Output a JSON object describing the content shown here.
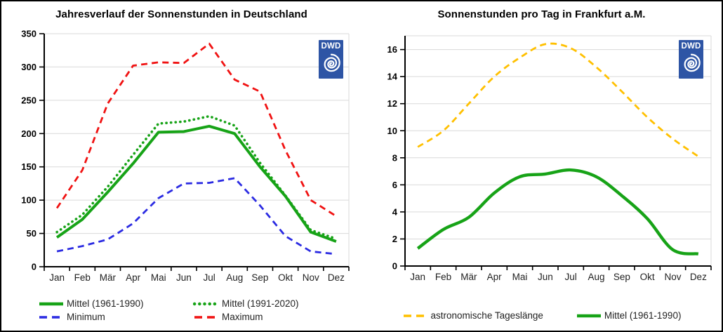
{
  "figure": {
    "background": "#ffffff",
    "border_color": "#000000"
  },
  "colors": {
    "gridline": "#d9d9d9",
    "axis": "#000000",
    "y_tick_label": "#000000",
    "x_tick_label": "#1f1f1f",
    "legend_text": "#1f1f1f",
    "logo_background": "#2e55a5",
    "logo_foreground": "#ffffff"
  },
  "chart_data": [
    {
      "type": "line",
      "title": "Jahresverlauf der Sonnenstunden in Deutschland",
      "logo_text": "DWD",
      "categories": [
        "Jan",
        "Feb",
        "Mär",
        "Apr",
        "Mai",
        "Jun",
        "Jul",
        "Aug",
        "Sep",
        "Okt",
        "Nov",
        "Dez"
      ],
      "xlabel": "",
      "ylabel": "",
      "ylim": [
        0,
        350
      ],
      "y_tick_step": 50,
      "y_tick_labels": [
        "0",
        "50",
        "100",
        "150",
        "200",
        "250",
        "300",
        "350"
      ],
      "grid": true,
      "legend_position": "bottom",
      "legend_rows": [
        [
          0,
          1
        ],
        [
          2,
          3
        ]
      ],
      "series": [
        {
          "name": "Mittel (1961-1990)",
          "color": "#17a317",
          "style": "solid",
          "width": 4,
          "smooth": false,
          "values": [
            44,
            71,
            112,
            155,
            202,
            203,
            211,
            200,
            150,
            106,
            52,
            38
          ]
        },
        {
          "name": "Mittel (1991-2020)",
          "color": "#17a317",
          "style": "dotted",
          "width": 3.6,
          "smooth": false,
          "values": [
            52,
            78,
            120,
            168,
            215,
            218,
            226,
            212,
            156,
            107,
            55,
            42
          ]
        },
        {
          "name": "Minimum",
          "color": "#2b2be2",
          "style": "dashed",
          "width": 2.8,
          "smooth": false,
          "values": [
            23,
            31,
            41,
            65,
            103,
            125,
            126,
            133,
            92,
            46,
            23,
            19
          ]
        },
        {
          "name": "Maximum",
          "color": "#f01212",
          "style": "dashed",
          "width": 2.8,
          "smooth": false,
          "values": [
            88,
            145,
            245,
            302,
            307,
            306,
            335,
            281,
            263,
            175,
            100,
            76
          ]
        }
      ]
    },
    {
      "type": "line",
      "title": "Sonnenstunden pro Tag in Frankfurt a.M.",
      "logo_text": "DWD",
      "categories": [
        "Jan",
        "Feb",
        "Mär",
        "Apr",
        "Mai",
        "Jun",
        "Jul",
        "Aug",
        "Sep",
        "Okt",
        "Nov",
        "Dez"
      ],
      "xlabel": "",
      "ylabel": "",
      "ylim": [
        0,
        16
      ],
      "y_tick_step": 2,
      "y_tick_labels": [
        "0",
        "2",
        "4",
        "6",
        "8",
        "10",
        "12",
        "14",
        "16"
      ],
      "grid": true,
      "legend_position": "bottom",
      "legend_rows": [
        [
          0,
          1
        ]
      ],
      "series": [
        {
          "name": "astronomische Tageslänge",
          "color": "#ffc000",
          "style": "dashed",
          "width": 2.8,
          "smooth": true,
          "values": [
            8.8,
            10.0,
            12.0,
            14.0,
            15.4,
            16.4,
            16.1,
            14.7,
            12.9,
            11.0,
            9.4,
            8.1
          ]
        },
        {
          "name": "Mittel (1961-1990)",
          "color": "#17a317",
          "style": "solid",
          "width": 4.4,
          "smooth": true,
          "values": [
            1.3,
            2.7,
            3.6,
            5.4,
            6.6,
            6.8,
            7.1,
            6.6,
            5.2,
            3.5,
            1.2,
            0.9
          ]
        }
      ]
    }
  ]
}
